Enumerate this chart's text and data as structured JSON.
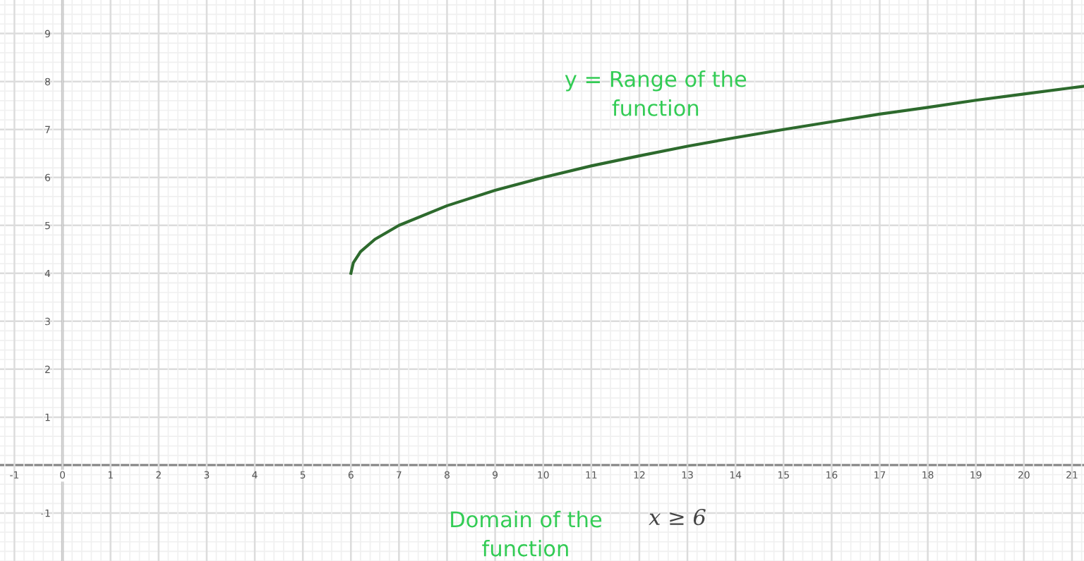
{
  "chart_data": {
    "type": "line",
    "x": [
      6,
      6.05,
      6.2,
      6.5,
      7,
      8,
      9,
      10,
      11,
      12,
      13,
      14,
      15,
      16,
      17,
      18,
      19,
      20,
      21,
      21.24
    ],
    "series": [
      {
        "color": "#2d6a2d",
        "values": [
          4,
          4.22,
          4.45,
          4.71,
          5,
          5.41,
          5.73,
          6,
          6.24,
          6.45,
          6.65,
          6.83,
          7,
          7.16,
          7.32,
          7.46,
          7.61,
          7.74,
          7.87,
          7.9
        ]
      }
    ],
    "xlim": [
      -1.3,
      21.25
    ],
    "ylim": [
      -2,
      9.7
    ],
    "xticks": [
      -1,
      0,
      1,
      2,
      3,
      4,
      5,
      6,
      7,
      8,
      9,
      10,
      11,
      12,
      13,
      14,
      15,
      16,
      17,
      18,
      19,
      20,
      21
    ],
    "yticks": [
      -1,
      1,
      2,
      3,
      4,
      5,
      6,
      7,
      8,
      9
    ],
    "grid": true,
    "marker": "none",
    "line_style": "solid",
    "annotations": [
      "y = Range of the\nfunction",
      "Domain of the\nfunction",
      "x ≥ 6"
    ]
  }
}
